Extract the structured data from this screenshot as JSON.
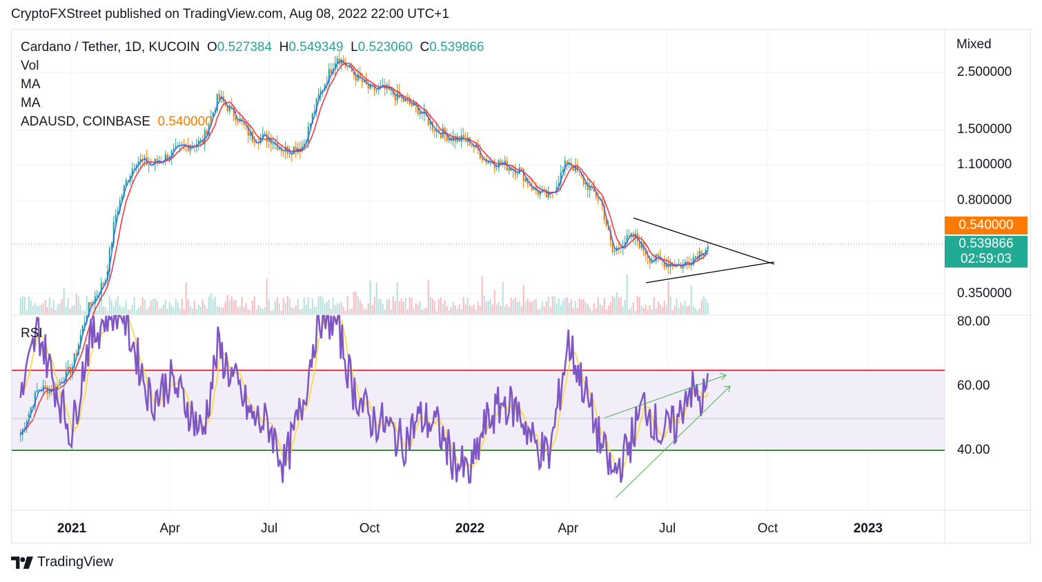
{
  "header": {
    "publisher_line": "CryptoFXStreet published on TradingView.com, Aug 08, 2022 22:00 UTC+1"
  },
  "legend": {
    "symbol": "Cardano / Tether, 1D, KUCOIN",
    "o_label": "O",
    "o_value": "0.527384",
    "h_label": "H",
    "h_value": "0.549349",
    "l_label": "L",
    "l_value": "0.523060",
    "c_label": "C",
    "c_value": "0.539866",
    "vol": "Vol",
    "ma1": "MA",
    "ma2": "MA",
    "compare": "ADAUSD, COINBASE",
    "compare_value": "0.540000"
  },
  "scale_mode": "Mixed",
  "price_tags": {
    "compare": "0.540000",
    "last": "0.539866",
    "countdown": "02:59:03"
  },
  "rsi_label": "RSI",
  "footer": {
    "brand": "TradingView",
    "logo_icon": "tradingview-logo-icon"
  },
  "colors": {
    "up": "#26a69a",
    "down": "#f57c00",
    "ma_fast": "#2962ff",
    "ma_slow": "#f23645",
    "rsi": "#7e57c2",
    "rsi_ma": "#fdd835",
    "rsi_upper": "#f23645",
    "rsi_lower": "#388e3c",
    "tag_orange": "#ff7a00",
    "tag_teal": "#22ab94"
  },
  "chart_data": [
    {
      "type": "line",
      "title": "Cardano / Tether, 1D, KUCOIN",
      "scale": "log",
      "y_ticks": [
        "2.500000",
        "1.500000",
        "1.100000",
        "0.800000",
        "0.350000"
      ],
      "x_ticks": [
        "2021",
        "Apr",
        "Jul",
        "Oct",
        "2022",
        "Apr",
        "Jul",
        "Oct",
        "2023"
      ],
      "series": [
        {
          "name": "Cardano / Tether",
          "x": [
            "2020-11-15",
            "2020-12-01",
            "2020-12-15",
            "2021-01-01",
            "2021-01-15",
            "2021-02-01",
            "2021-02-10",
            "2021-02-20",
            "2021-03-01",
            "2021-03-15",
            "2021-04-01",
            "2021-04-15",
            "2021-05-01",
            "2021-05-15",
            "2021-06-01",
            "2021-06-15",
            "2021-07-01",
            "2021-07-15",
            "2021-08-01",
            "2021-08-15",
            "2021-09-01",
            "2021-09-15",
            "2021-10-01",
            "2021-10-15",
            "2021-11-01",
            "2021-11-15",
            "2021-12-01",
            "2021-12-15",
            "2022-01-01",
            "2022-01-15",
            "2022-02-01",
            "2022-02-15",
            "2022-03-01",
            "2022-03-15",
            "2022-04-01",
            "2022-04-15",
            "2022-05-01",
            "2022-05-12",
            "2022-05-20",
            "2022-06-01",
            "2022-06-15",
            "2022-07-01",
            "2022-07-15",
            "2022-08-01",
            "2022-08-08"
          ],
          "values": [
            0.1,
            0.15,
            0.15,
            0.18,
            0.3,
            0.4,
            0.7,
            0.95,
            1.15,
            1.1,
            1.2,
            1.3,
            1.35,
            2.0,
            1.7,
            1.4,
            1.4,
            1.25,
            1.3,
            2.0,
            2.9,
            2.5,
            2.15,
            2.15,
            1.95,
            1.8,
            1.5,
            1.4,
            1.35,
            1.15,
            1.1,
            1.05,
            0.88,
            0.82,
            1.15,
            0.95,
            0.8,
            0.5,
            0.55,
            0.58,
            0.48,
            0.46,
            0.45,
            0.51,
            0.54
          ]
        }
      ],
      "annotations": [
        "symmetrical triangle trendlines"
      ]
    },
    {
      "type": "line",
      "title": "RSI",
      "y_ticks": [
        "80.00",
        "60.00",
        "40.00"
      ],
      "upper_band": 65,
      "lower_band": 40,
      "mid": 50,
      "series": [
        {
          "name": "RSI",
          "x": [
            "2020-11-15",
            "2020-12-01",
            "2020-12-15",
            "2021-01-01",
            "2021-01-15",
            "2021-02-01",
            "2021-02-15",
            "2021-03-01",
            "2021-03-15",
            "2021-04-01",
            "2021-04-15",
            "2021-05-01",
            "2021-05-15",
            "2021-06-01",
            "2021-06-15",
            "2021-07-01",
            "2021-07-15",
            "2021-08-01",
            "2021-08-15",
            "2021-09-01",
            "2021-09-15",
            "2021-10-01",
            "2021-10-15",
            "2021-11-01",
            "2021-11-15",
            "2021-12-01",
            "2021-12-15",
            "2022-01-01",
            "2022-01-15",
            "2022-02-01",
            "2022-02-15",
            "2022-03-01",
            "2022-03-15",
            "2022-04-01",
            "2022-04-15",
            "2022-05-01",
            "2022-05-12",
            "2022-05-25",
            "2022-06-10",
            "2022-06-25",
            "2022-07-10",
            "2022-07-20",
            "2022-08-01",
            "2022-08-08"
          ],
          "values": [
            55,
            78,
            62,
            45,
            72,
            82,
            85,
            70,
            55,
            62,
            55,
            45,
            72,
            60,
            50,
            48,
            35,
            55,
            82,
            80,
            60,
            50,
            48,
            42,
            50,
            48,
            38,
            32,
            48,
            55,
            52,
            42,
            38,
            74,
            60,
            42,
            32,
            40,
            55,
            45,
            48,
            60,
            55,
            60
          ]
        }
      ],
      "annotations": [
        "rising trendline on RSI",
        "rising trendline on RSI lows"
      ]
    }
  ]
}
